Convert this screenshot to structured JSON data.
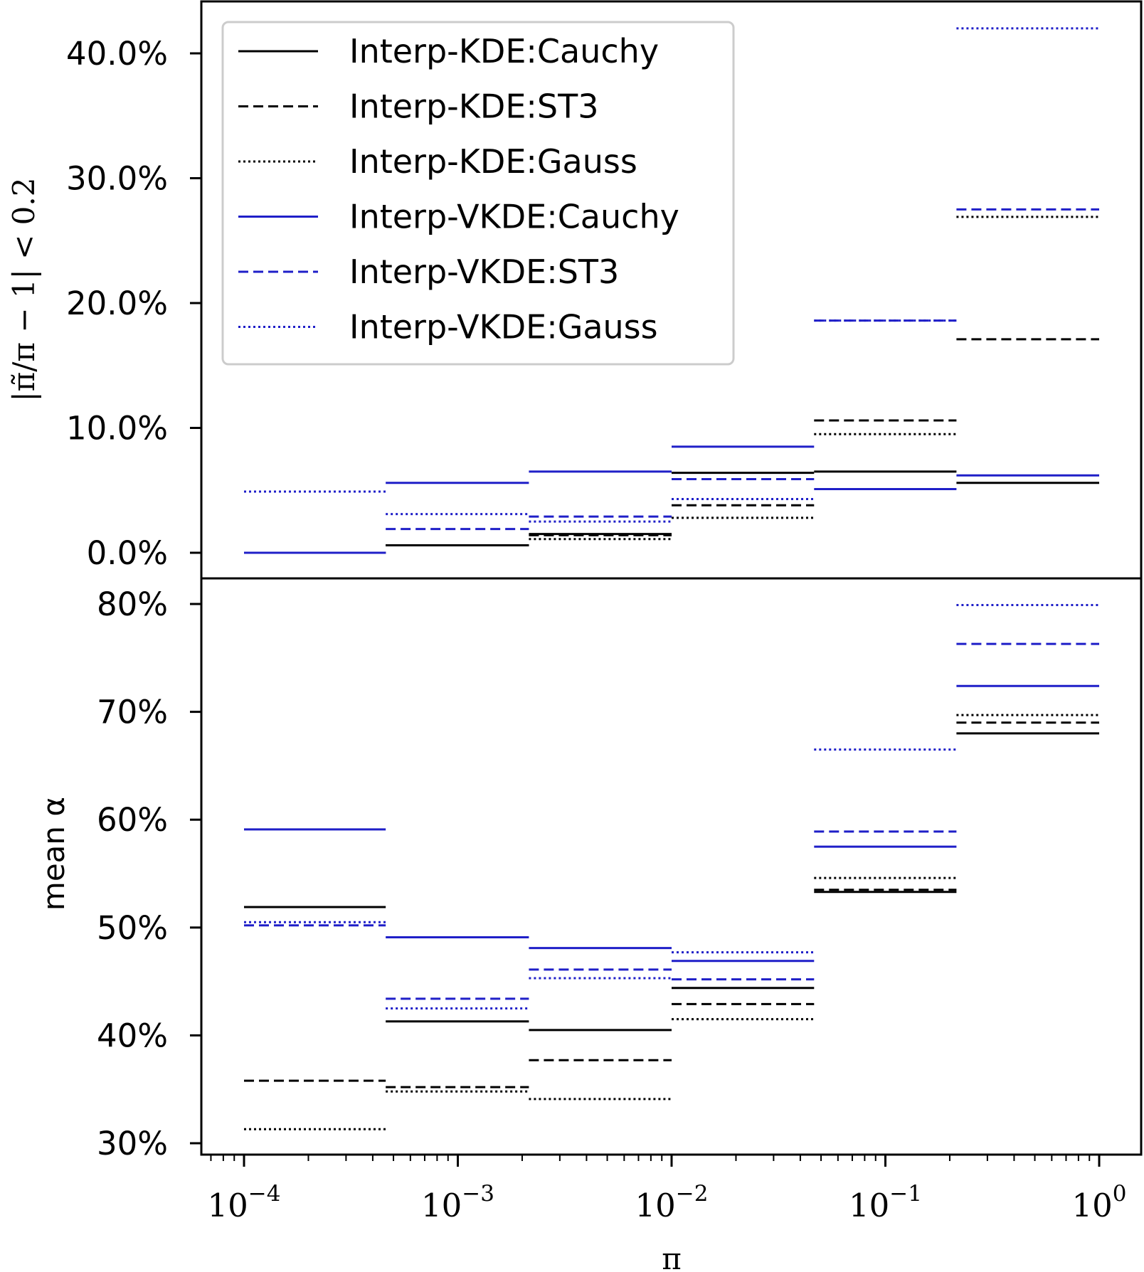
{
  "chart_data": [
    {
      "type": "line",
      "panel": "top",
      "ylabel": "|π̃/π − 1| < 0.2",
      "ylim": [
        -2,
        44
      ],
      "yticks": [
        0,
        10,
        20,
        30,
        40
      ],
      "ytick_labels": [
        "0.0%",
        "10.0%",
        "20.0%",
        "30.0%",
        "40.0%"
      ],
      "x_scale": "log",
      "bins": [
        [
          0.0001,
          0.00046
        ],
        [
          0.00046,
          0.00215
        ],
        [
          0.00215,
          0.01
        ],
        [
          0.01,
          0.0464
        ],
        [
          0.0464,
          0.215
        ],
        [
          0.215,
          1
        ]
      ],
      "legend_position": "upper-left",
      "series": [
        {
          "name": "Interp-KDE:Cauchy",
          "color": "#000000",
          "dash": "solid",
          "values": [
            0.0,
            0.6,
            1.5,
            6.4,
            6.5,
            5.6
          ]
        },
        {
          "name": "Interp-KDE:ST3",
          "color": "#000000",
          "dash": "dashed",
          "values": [
            0.0,
            0.6,
            1.4,
            3.8,
            10.6,
            17.1
          ]
        },
        {
          "name": "Interp-KDE:Gauss",
          "color": "#000000",
          "dash": "dotted",
          "values": [
            0.0,
            0.6,
            1.1,
            2.8,
            9.5,
            26.9
          ]
        },
        {
          "name": "Interp-VKDE:Cauchy",
          "color": "#1f1fc8",
          "dash": "solid",
          "values": [
            0.0,
            5.6,
            6.5,
            8.5,
            5.1,
            6.2
          ]
        },
        {
          "name": "Interp-VKDE:ST3",
          "color": "#1f1fc8",
          "dash": "dashed",
          "values": [
            0.0,
            1.9,
            2.9,
            5.9,
            18.6,
            27.5
          ]
        },
        {
          "name": "Interp-VKDE:Gauss",
          "color": "#1f1fc8",
          "dash": "dotted",
          "values": [
            4.9,
            3.1,
            2.5,
            4.3,
            18.6,
            42.0
          ]
        }
      ]
    },
    {
      "type": "line",
      "panel": "bottom",
      "ylabel": "mean α",
      "xlabel": "π",
      "ylim": [
        29,
        81
      ],
      "yticks": [
        30,
        40,
        50,
        60,
        70,
        80
      ],
      "ytick_labels": [
        "30%",
        "40%",
        "50%",
        "60%",
        "70%",
        "80%"
      ],
      "x_scale": "log",
      "xlim": [
        5e-05,
        2
      ],
      "xticks": [
        0.0001,
        0.001,
        0.01,
        0.1,
        1
      ],
      "xtick_labels": [
        {
          "base": "10",
          "exp": "−4"
        },
        {
          "base": "10",
          "exp": "−3"
        },
        {
          "base": "10",
          "exp": "−2"
        },
        {
          "base": "10",
          "exp": "−1"
        },
        {
          "base": "10",
          "exp": "0"
        }
      ],
      "bins": [
        [
          0.0001,
          0.00046
        ],
        [
          0.00046,
          0.00215
        ],
        [
          0.00215,
          0.01
        ],
        [
          0.01,
          0.0464
        ],
        [
          0.0464,
          0.215
        ],
        [
          0.215,
          1
        ]
      ],
      "series": [
        {
          "name": "Interp-KDE:Cauchy",
          "color": "#000000",
          "dash": "solid",
          "values": [
            51.9,
            41.3,
            40.5,
            44.4,
            53.3,
            68.0
          ]
        },
        {
          "name": "Interp-KDE:ST3",
          "color": "#000000",
          "dash": "dashed",
          "values": [
            35.8,
            35.2,
            37.7,
            42.9,
            53.5,
            69.0
          ]
        },
        {
          "name": "Interp-KDE:Gauss",
          "color": "#000000",
          "dash": "dotted",
          "values": [
            31.3,
            34.8,
            34.1,
            41.5,
            54.6,
            69.7
          ]
        },
        {
          "name": "Interp-VKDE:Cauchy",
          "color": "#1f1fc8",
          "dash": "solid",
          "values": [
            59.1,
            49.1,
            48.1,
            46.9,
            57.5,
            72.4
          ]
        },
        {
          "name": "Interp-VKDE:ST3",
          "color": "#1f1fc8",
          "dash": "dashed",
          "values": [
            50.2,
            43.4,
            46.1,
            45.2,
            58.9,
            76.3
          ]
        },
        {
          "name": "Interp-VKDE:Gauss",
          "color": "#1f1fc8",
          "dash": "dotted",
          "values": [
            50.5,
            42.5,
            45.3,
            47.7,
            66.5,
            79.9
          ]
        }
      ]
    }
  ]
}
